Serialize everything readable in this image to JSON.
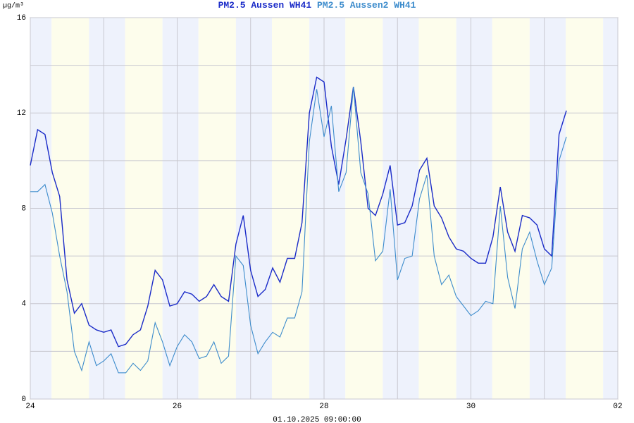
{
  "chart_data": {
    "type": "line",
    "ylabel": "µg/m³",
    "footer": "01.10.2025 09:00:00",
    "x": [
      24,
      24.1,
      24.2,
      24.3,
      24.4,
      24.5,
      24.6,
      24.7,
      24.8,
      24.9,
      25,
      25.1,
      25.2,
      25.3,
      25.4,
      25.5,
      25.6,
      25.7,
      25.8,
      25.9,
      26,
      26.1,
      26.2,
      26.3,
      26.4,
      26.5,
      26.6,
      26.7,
      26.8,
      26.9,
      27,
      27.1,
      27.2,
      27.3,
      27.4,
      27.5,
      27.6,
      27.7,
      27.8,
      27.9,
      28,
      28.1,
      28.2,
      28.3,
      28.4,
      28.5,
      28.6,
      28.7,
      28.8,
      28.9,
      29,
      29.1,
      29.2,
      29.3,
      29.4,
      29.5,
      29.6,
      29.7,
      29.8,
      29.9,
      30,
      30.1,
      30.2,
      30.3,
      30.4,
      30.5,
      30.6,
      30.7,
      30.8,
      30.9,
      31,
      31.1,
      31.2,
      31.3
    ],
    "series": [
      {
        "name": "PM2.5 Aussen WH41",
        "color": "#1a2bc8",
        "values": [
          9.8,
          11.3,
          11.1,
          9.5,
          8.5,
          5.0,
          3.6,
          4.0,
          3.1,
          2.9,
          2.8,
          2.9,
          2.2,
          2.3,
          2.7,
          2.9,
          3.9,
          5.4,
          5.0,
          3.9,
          4.0,
          4.5,
          4.4,
          4.1,
          4.3,
          4.8,
          4.3,
          4.1,
          6.5,
          7.7,
          5.4,
          4.3,
          4.6,
          5.5,
          4.9,
          5.9,
          5.9,
          7.4,
          12.0,
          13.5,
          13.3,
          10.6,
          9.0,
          10.9,
          13.1,
          10.8,
          8.0,
          7.7,
          8.6,
          9.8,
          7.3,
          7.4,
          8.1,
          9.6,
          10.1,
          8.1,
          7.6,
          6.8,
          6.3,
          6.2,
          5.9,
          5.7,
          5.7,
          6.8,
          8.9,
          7.0,
          6.2,
          7.7,
          7.6,
          7.3,
          6.3,
          6.0,
          11.1,
          12.1
        ]
      },
      {
        "name": "PM2.5 Aussen2 WH41",
        "color": "#3d8ccc",
        "values": [
          8.7,
          8.7,
          9.0,
          7.8,
          6.0,
          4.5,
          2.0,
          1.2,
          2.4,
          1.4,
          1.6,
          1.9,
          1.1,
          1.1,
          1.5,
          1.2,
          1.6,
          3.2,
          2.4,
          1.4,
          2.2,
          2.7,
          2.4,
          1.7,
          1.8,
          2.4,
          1.5,
          1.8,
          6.0,
          5.6,
          3.1,
          1.9,
          2.4,
          2.8,
          2.6,
          3.4,
          3.4,
          4.5,
          10.8,
          13.0,
          11.0,
          12.3,
          8.7,
          9.5,
          13.1,
          9.5,
          8.6,
          5.8,
          6.2,
          8.8,
          5.0,
          5.9,
          6.0,
          8.4,
          9.4,
          6.0,
          4.8,
          5.2,
          4.3,
          3.9,
          3.5,
          3.7,
          4.1,
          4.0,
          8.1,
          5.1,
          3.8,
          6.3,
          7.0,
          5.8,
          4.8,
          5.5,
          10.0,
          11.0
        ]
      }
    ],
    "xlim": [
      24,
      32
    ],
    "xticks": [
      24,
      26,
      28,
      30,
      {
        "value": 32,
        "label": "02"
      }
    ],
    "xminor": [
      25,
      27,
      29,
      31
    ],
    "ylim": [
      0,
      16
    ],
    "yticks": [
      0,
      4,
      8,
      12,
      16
    ],
    "yminor": [
      2,
      6,
      10,
      14
    ],
    "grid": true
  }
}
